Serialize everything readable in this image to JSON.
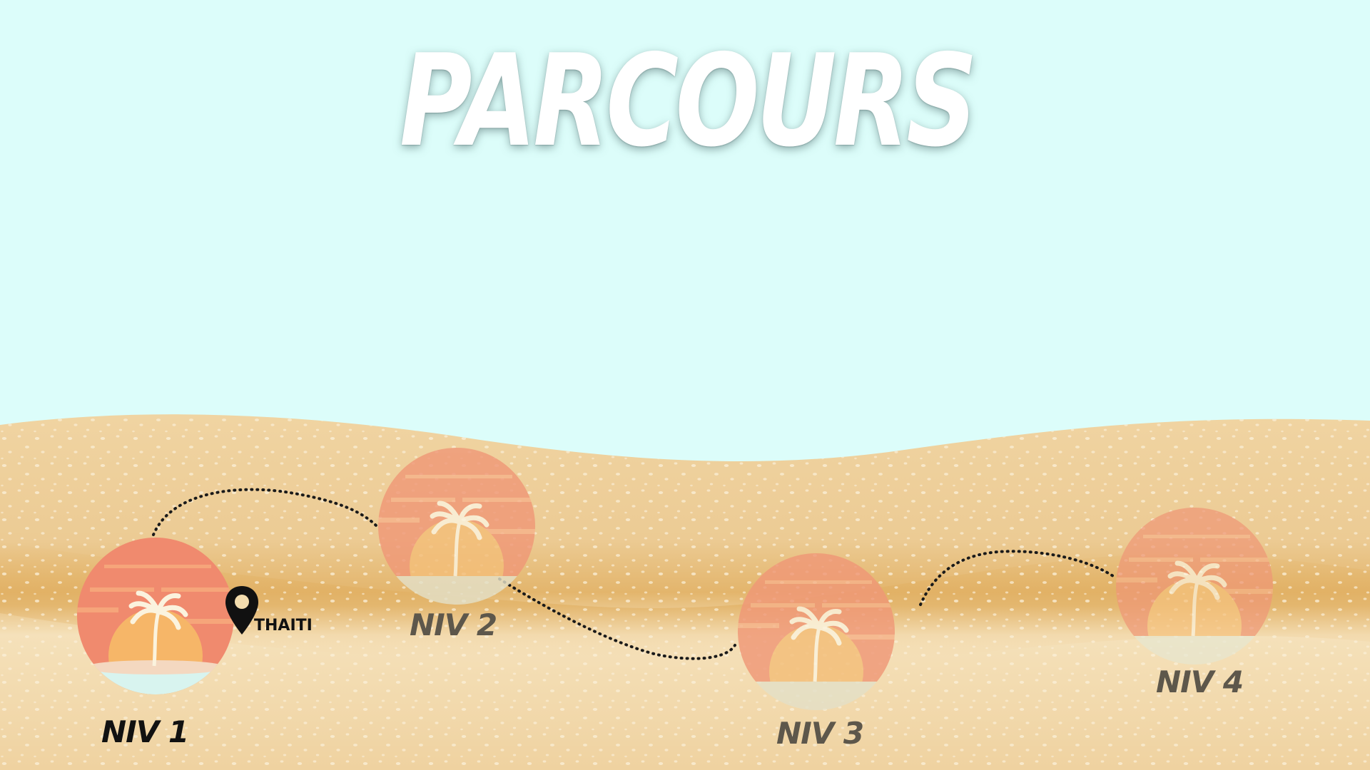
{
  "title": "PARCOURS",
  "colors": {
    "sky": "#dcfdfa",
    "sand_light": "#f6e2bd",
    "sand_mid": "#edcb92",
    "sand_dark": "#e2b46a",
    "sun_red": "#f08a6e",
    "sun_core": "#f6b668",
    "palm": "#fbf3de",
    "label_active": "#111111",
    "label_locked": "#5d574b"
  },
  "levels": [
    {
      "label": "NIV 1",
      "state": "unlocked",
      "current": true
    },
    {
      "label": "NIV 2",
      "state": "locked"
    },
    {
      "label": "NIV 3",
      "state": "locked"
    },
    {
      "label": "NIV 4",
      "state": "locked"
    }
  ],
  "location": {
    "label": "THAITI",
    "icon": "map-pin-icon"
  },
  "level_icon": "sunset-palm-icon"
}
